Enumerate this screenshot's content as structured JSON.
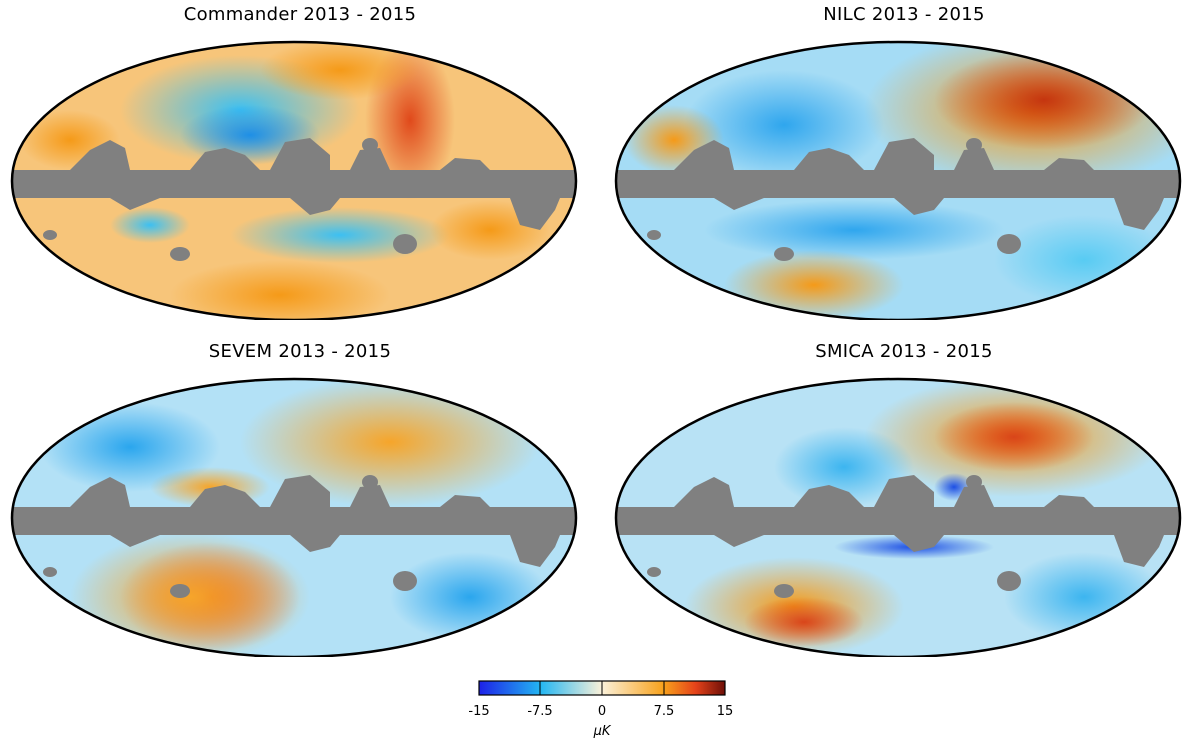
{
  "panels": [
    {
      "title": "Commander 2013 - 2015"
    },
    {
      "title": "NILC 2013 - 2015"
    },
    {
      "title": "SEVEM 2013 - 2015"
    },
    {
      "title": "SMICA 2013 - 2015"
    }
  ],
  "colorbar": {
    "ticks": [
      "-15",
      "-7.5",
      "0",
      "7.5",
      "15"
    ],
    "unit": "μK",
    "colors": [
      "#1d21e8",
      "#23b6f2",
      "#fbf1d9",
      "#f8a21c",
      "#e5431a",
      "#6e0f08"
    ]
  },
  "mask_color": "#808080"
}
